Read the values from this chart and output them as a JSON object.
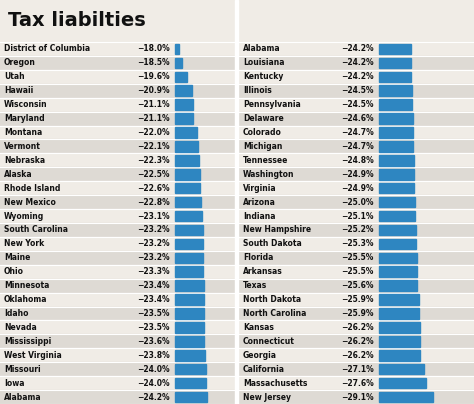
{
  "title": "Tax liabilties",
  "left_states": [
    "District of Columbia",
    "Oregon",
    "Utah",
    "Hawaii",
    "Wisconsin",
    "Maryland",
    "Montana",
    "Vermont",
    "Nebraska",
    "Alaska",
    "Rhode Island",
    "New Mexico",
    "Wyoming",
    "South Carolina",
    "New York",
    "Maine",
    "Ohio",
    "Minnesota",
    "Oklahoma",
    "Idaho",
    "Nevada",
    "Mississippi",
    "West Virginia",
    "Missouri",
    "Iowa",
    "Alabama"
  ],
  "left_values": [
    -18.0,
    -18.5,
    -19.6,
    -20.9,
    -21.1,
    -21.1,
    -22.0,
    -22.1,
    -22.3,
    -22.5,
    -22.6,
    -22.8,
    -23.1,
    -23.2,
    -23.2,
    -23.2,
    -23.3,
    -23.4,
    -23.4,
    -23.5,
    -23.5,
    -23.6,
    -23.8,
    -24.0,
    -24.0,
    -24.2
  ],
  "right_states": [
    "Alabama",
    "Louisiana",
    "Kentucky",
    "Illinois",
    "Pennsylvania",
    "Delaware",
    "Colorado",
    "Michigan",
    "Tennessee",
    "Washington",
    "Virginia",
    "Arizona",
    "Indiana",
    "New Hampshire",
    "South Dakota",
    "Florida",
    "Arkansas",
    "Texas",
    "North Dakota",
    "North Carolina",
    "Kansas",
    "Connecticut",
    "Georgia",
    "California",
    "Massachusetts",
    "New Jersey"
  ],
  "right_values": [
    -24.2,
    -24.2,
    -24.2,
    -24.5,
    -24.5,
    -24.6,
    -24.7,
    -24.7,
    -24.8,
    -24.9,
    -24.9,
    -25.0,
    -25.1,
    -25.2,
    -25.3,
    -25.5,
    -25.5,
    -25.6,
    -25.9,
    -25.9,
    -26.2,
    -26.2,
    -26.2,
    -27.1,
    -27.6,
    -29.1
  ],
  "bar_color": "#2e86c1",
  "bg_color": "#f0ece6",
  "row_bg_odd": "#dedad4",
  "row_bg_even": "#f0ece6",
  "title_color": "#111111",
  "text_color": "#111111",
  "val_min": -30.0,
  "val_max": -17.0,
  "title_fontsize": 14,
  "row_fontsize": 5.5
}
